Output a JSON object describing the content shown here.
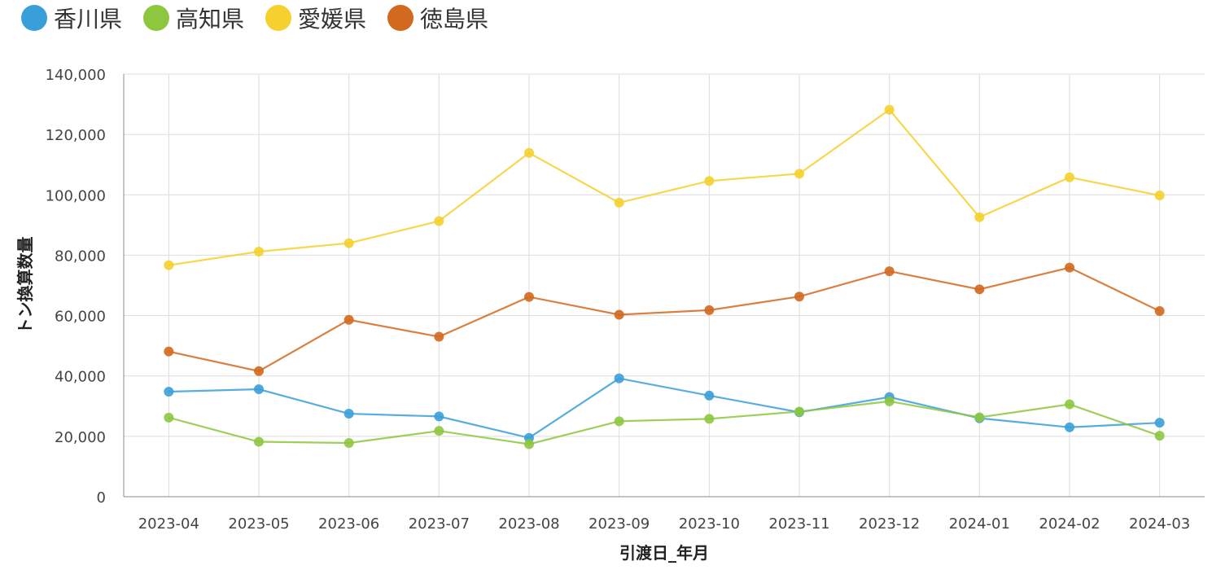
{
  "chart_data": {
    "type": "line",
    "xlabel": "引渡日_年月",
    "ylabel": "トン換算数量",
    "ylim": [
      0,
      140000
    ],
    "yticks": [
      0,
      20000,
      40000,
      60000,
      80000,
      100000,
      120000,
      140000
    ],
    "ytick_labels": [
      "0",
      "20,000",
      "40,000",
      "60,000",
      "80,000",
      "100,000",
      "120,000",
      "140,000"
    ],
    "grid": true,
    "legend_position": "top-left",
    "categories": [
      "2023-04",
      "2023-05",
      "2023-06",
      "2023-07",
      "2023-08",
      "2023-09",
      "2023-10",
      "2023-11",
      "2023-12",
      "2024-01",
      "2024-02",
      "2024-03"
    ],
    "series": [
      {
        "name": "香川県",
        "color": "#3a9fd8",
        "values": [
          34800,
          35600,
          27500,
          26600,
          19500,
          39200,
          33500,
          28000,
          33000,
          26000,
          23000,
          24500
        ]
      },
      {
        "name": "高知県",
        "color": "#8dc63f",
        "values": [
          26200,
          18200,
          17800,
          21800,
          17400,
          25000,
          25800,
          28200,
          31600,
          26300,
          30600,
          20200
        ]
      },
      {
        "name": "愛媛県",
        "color": "#f5d02e",
        "values": [
          76700,
          81200,
          84000,
          91300,
          113900,
          97400,
          104600,
          107000,
          128200,
          92600,
          105800,
          99800
        ]
      },
      {
        "name": "徳島県",
        "color": "#d2691e",
        "values": [
          48100,
          41600,
          58600,
          53000,
          66200,
          60300,
          61800,
          66300,
          74700,
          68700,
          75900,
          61500
        ]
      }
    ]
  }
}
